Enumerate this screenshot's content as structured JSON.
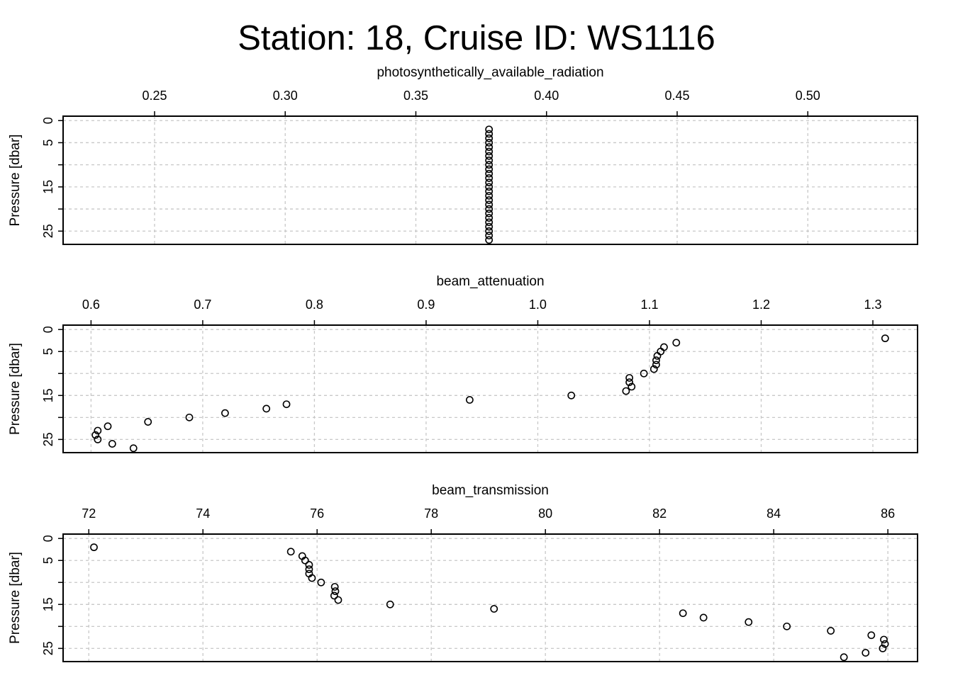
{
  "figure_title": "Station: 18, Cruise ID: WS1116",
  "chart_data": [
    {
      "type": "scatter",
      "xlabel": "photosynthetically_available_radiation",
      "ylabel": "Pressure [dbar]",
      "xlim": [
        0.215,
        0.542
      ],
      "ylim": [
        28,
        -1
      ],
      "xticks": [
        0.25,
        0.3,
        0.35,
        0.4,
        0.45,
        0.5
      ],
      "xtick_labels": [
        "0.25",
        "0.30",
        "0.35",
        "0.40",
        "0.45",
        "0.50"
      ],
      "yticks": [
        0,
        5,
        10,
        15,
        20,
        25
      ],
      "ytick_labels": [
        "0",
        "5",
        "",
        "15",
        "",
        "25"
      ],
      "grid": true,
      "points": [
        {
          "x": 0.378,
          "y": 2
        },
        {
          "x": 0.378,
          "y": 3
        },
        {
          "x": 0.378,
          "y": 4
        },
        {
          "x": 0.378,
          "y": 5
        },
        {
          "x": 0.378,
          "y": 6
        },
        {
          "x": 0.378,
          "y": 7
        },
        {
          "x": 0.378,
          "y": 8
        },
        {
          "x": 0.378,
          "y": 9
        },
        {
          "x": 0.378,
          "y": 10
        },
        {
          "x": 0.378,
          "y": 11
        },
        {
          "x": 0.378,
          "y": 12
        },
        {
          "x": 0.378,
          "y": 13
        },
        {
          "x": 0.378,
          "y": 14
        },
        {
          "x": 0.378,
          "y": 15
        },
        {
          "x": 0.378,
          "y": 16
        },
        {
          "x": 0.378,
          "y": 17
        },
        {
          "x": 0.378,
          "y": 18
        },
        {
          "x": 0.378,
          "y": 19
        },
        {
          "x": 0.378,
          "y": 20
        },
        {
          "x": 0.378,
          "y": 21
        },
        {
          "x": 0.378,
          "y": 22
        },
        {
          "x": 0.378,
          "y": 23
        },
        {
          "x": 0.378,
          "y": 24
        },
        {
          "x": 0.378,
          "y": 25
        },
        {
          "x": 0.378,
          "y": 26
        },
        {
          "x": 0.378,
          "y": 27
        }
      ]
    },
    {
      "type": "scatter",
      "xlabel": "beam_attenuation",
      "ylabel": "Pressure [dbar]",
      "xlim": [
        0.575,
        1.34
      ],
      "ylim": [
        28,
        -1
      ],
      "xticks": [
        0.6,
        0.7,
        0.8,
        0.9,
        1.0,
        1.1,
        1.2,
        1.3
      ],
      "xtick_labels": [
        "0.6",
        "0.7",
        "0.8",
        "0.9",
        "1.0",
        "1.1",
        "1.2",
        "1.3"
      ],
      "yticks": [
        0,
        5,
        10,
        15,
        20,
        25
      ],
      "ytick_labels": [
        "0",
        "5",
        "",
        "15",
        "",
        "25"
      ],
      "grid": true,
      "points": [
        {
          "x": 1.311,
          "y": 2
        },
        {
          "x": 1.124,
          "y": 3
        },
        {
          "x": 1.113,
          "y": 4
        },
        {
          "x": 1.11,
          "y": 5
        },
        {
          "x": 1.107,
          "y": 6
        },
        {
          "x": 1.106,
          "y": 7
        },
        {
          "x": 1.106,
          "y": 8
        },
        {
          "x": 1.104,
          "y": 9
        },
        {
          "x": 1.095,
          "y": 10
        },
        {
          "x": 1.082,
          "y": 11
        },
        {
          "x": 1.082,
          "y": 12
        },
        {
          "x": 1.084,
          "y": 13
        },
        {
          "x": 1.079,
          "y": 14
        },
        {
          "x": 1.03,
          "y": 15
        },
        {
          "x": 0.939,
          "y": 16
        },
        {
          "x": 0.775,
          "y": 17
        },
        {
          "x": 0.757,
          "y": 18
        },
        {
          "x": 0.72,
          "y": 19
        },
        {
          "x": 0.688,
          "y": 20
        },
        {
          "x": 0.651,
          "y": 21
        },
        {
          "x": 0.615,
          "y": 22
        },
        {
          "x": 0.606,
          "y": 23
        },
        {
          "x": 0.604,
          "y": 24
        },
        {
          "x": 0.606,
          "y": 25
        },
        {
          "x": 0.619,
          "y": 26
        },
        {
          "x": 0.638,
          "y": 27
        }
      ]
    },
    {
      "type": "scatter",
      "xlabel": "beam_transmission",
      "ylabel": "Pressure [dbar]",
      "xlim": [
        71.55,
        86.52
      ],
      "ylim": [
        28,
        -1
      ],
      "xticks": [
        72,
        74,
        76,
        78,
        80,
        82,
        84,
        86
      ],
      "xtick_labels": [
        "72",
        "74",
        "76",
        "78",
        "80",
        "82",
        "84",
        "86"
      ],
      "yticks": [
        0,
        5,
        10,
        15,
        20,
        25
      ],
      "ytick_labels": [
        "0",
        "5",
        "",
        "15",
        "",
        "25"
      ],
      "grid": true,
      "points": [
        {
          "x": 72.09,
          "y": 2
        },
        {
          "x": 75.54,
          "y": 3
        },
        {
          "x": 75.74,
          "y": 4
        },
        {
          "x": 75.79,
          "y": 5
        },
        {
          "x": 75.86,
          "y": 6
        },
        {
          "x": 75.86,
          "y": 7
        },
        {
          "x": 75.86,
          "y": 8
        },
        {
          "x": 75.91,
          "y": 9
        },
        {
          "x": 76.07,
          "y": 10
        },
        {
          "x": 76.31,
          "y": 11
        },
        {
          "x": 76.32,
          "y": 12
        },
        {
          "x": 76.3,
          "y": 13
        },
        {
          "x": 76.37,
          "y": 14
        },
        {
          "x": 77.28,
          "y": 15
        },
        {
          "x": 79.1,
          "y": 16
        },
        {
          "x": 82.41,
          "y": 17
        },
        {
          "x": 82.77,
          "y": 18
        },
        {
          "x": 83.56,
          "y": 19
        },
        {
          "x": 84.23,
          "y": 20
        },
        {
          "x": 85.0,
          "y": 21
        },
        {
          "x": 85.71,
          "y": 22
        },
        {
          "x": 85.93,
          "y": 23
        },
        {
          "x": 85.95,
          "y": 24
        },
        {
          "x": 85.91,
          "y": 25
        },
        {
          "x": 85.61,
          "y": 26
        },
        {
          "x": 85.23,
          "y": 27
        }
      ]
    }
  ]
}
